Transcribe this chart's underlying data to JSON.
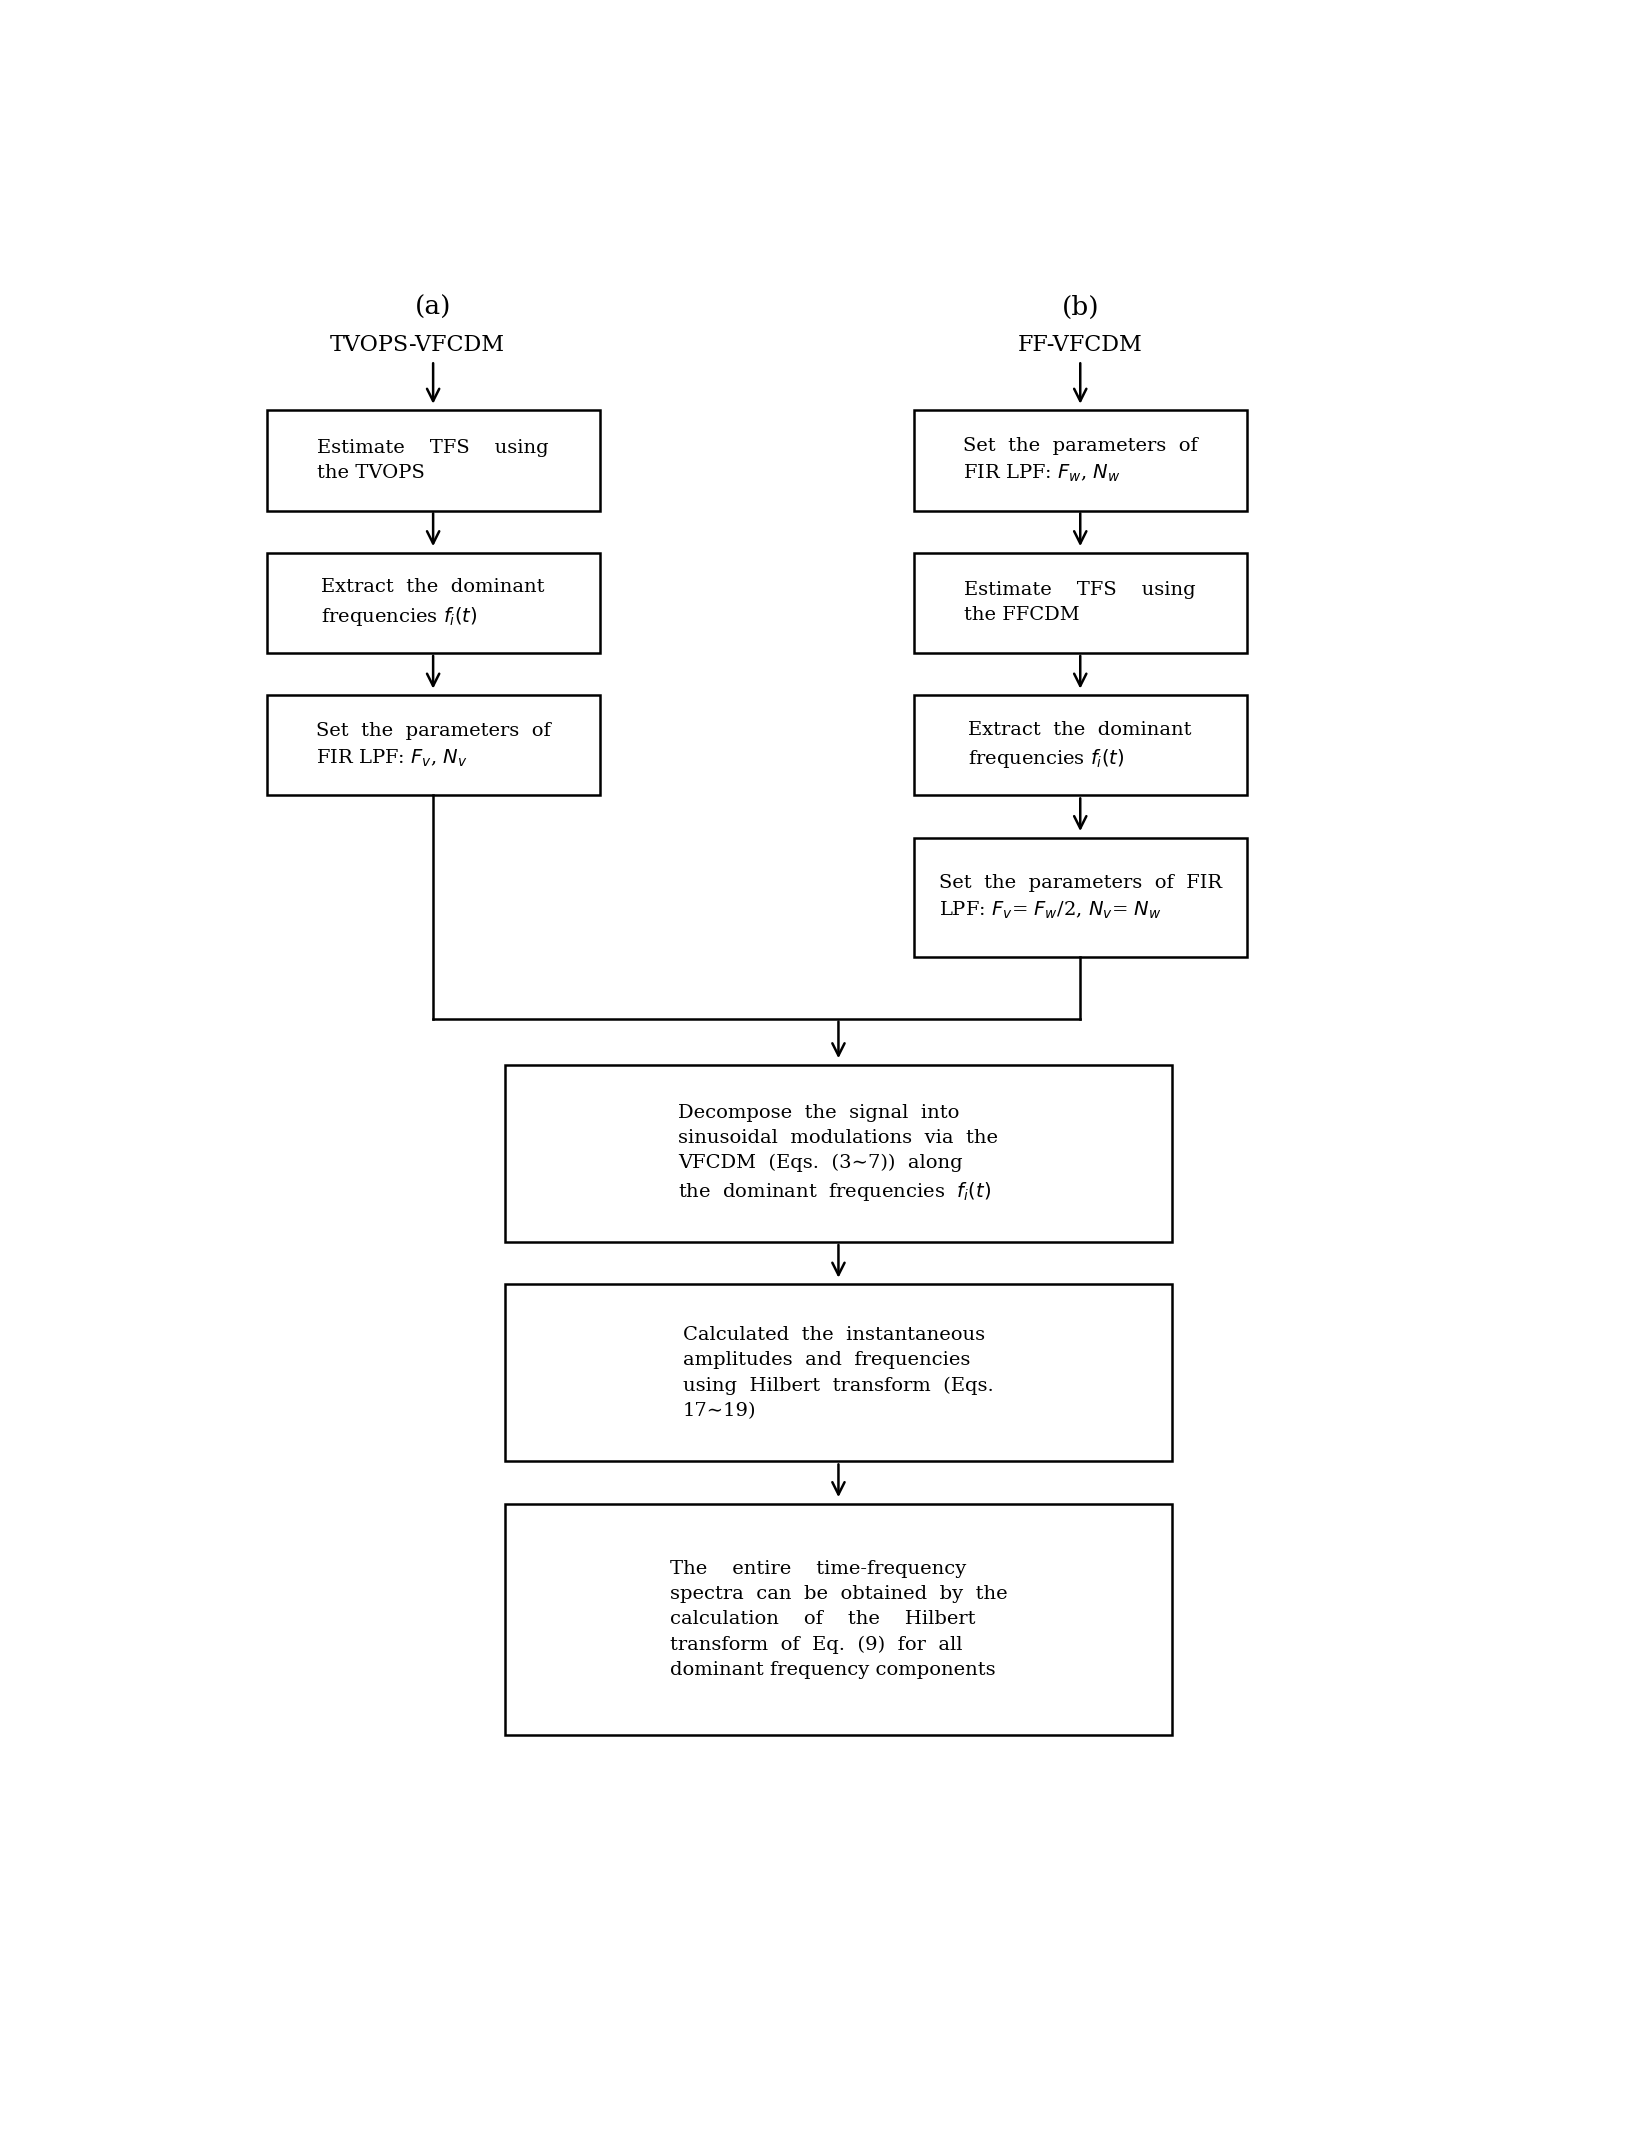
{
  "title_a": "(a)",
  "title_b": "(b)",
  "label_a": "TVOPS-VFCDM",
  "label_b": "FF-VFCDM",
  "bg_color": "#ffffff",
  "box_color": "#ffffff",
  "line_color": "#000000",
  "text_color": "#000000",
  "fontsize": 14,
  "fontsize_label": 16,
  "fontsize_title": 16
}
